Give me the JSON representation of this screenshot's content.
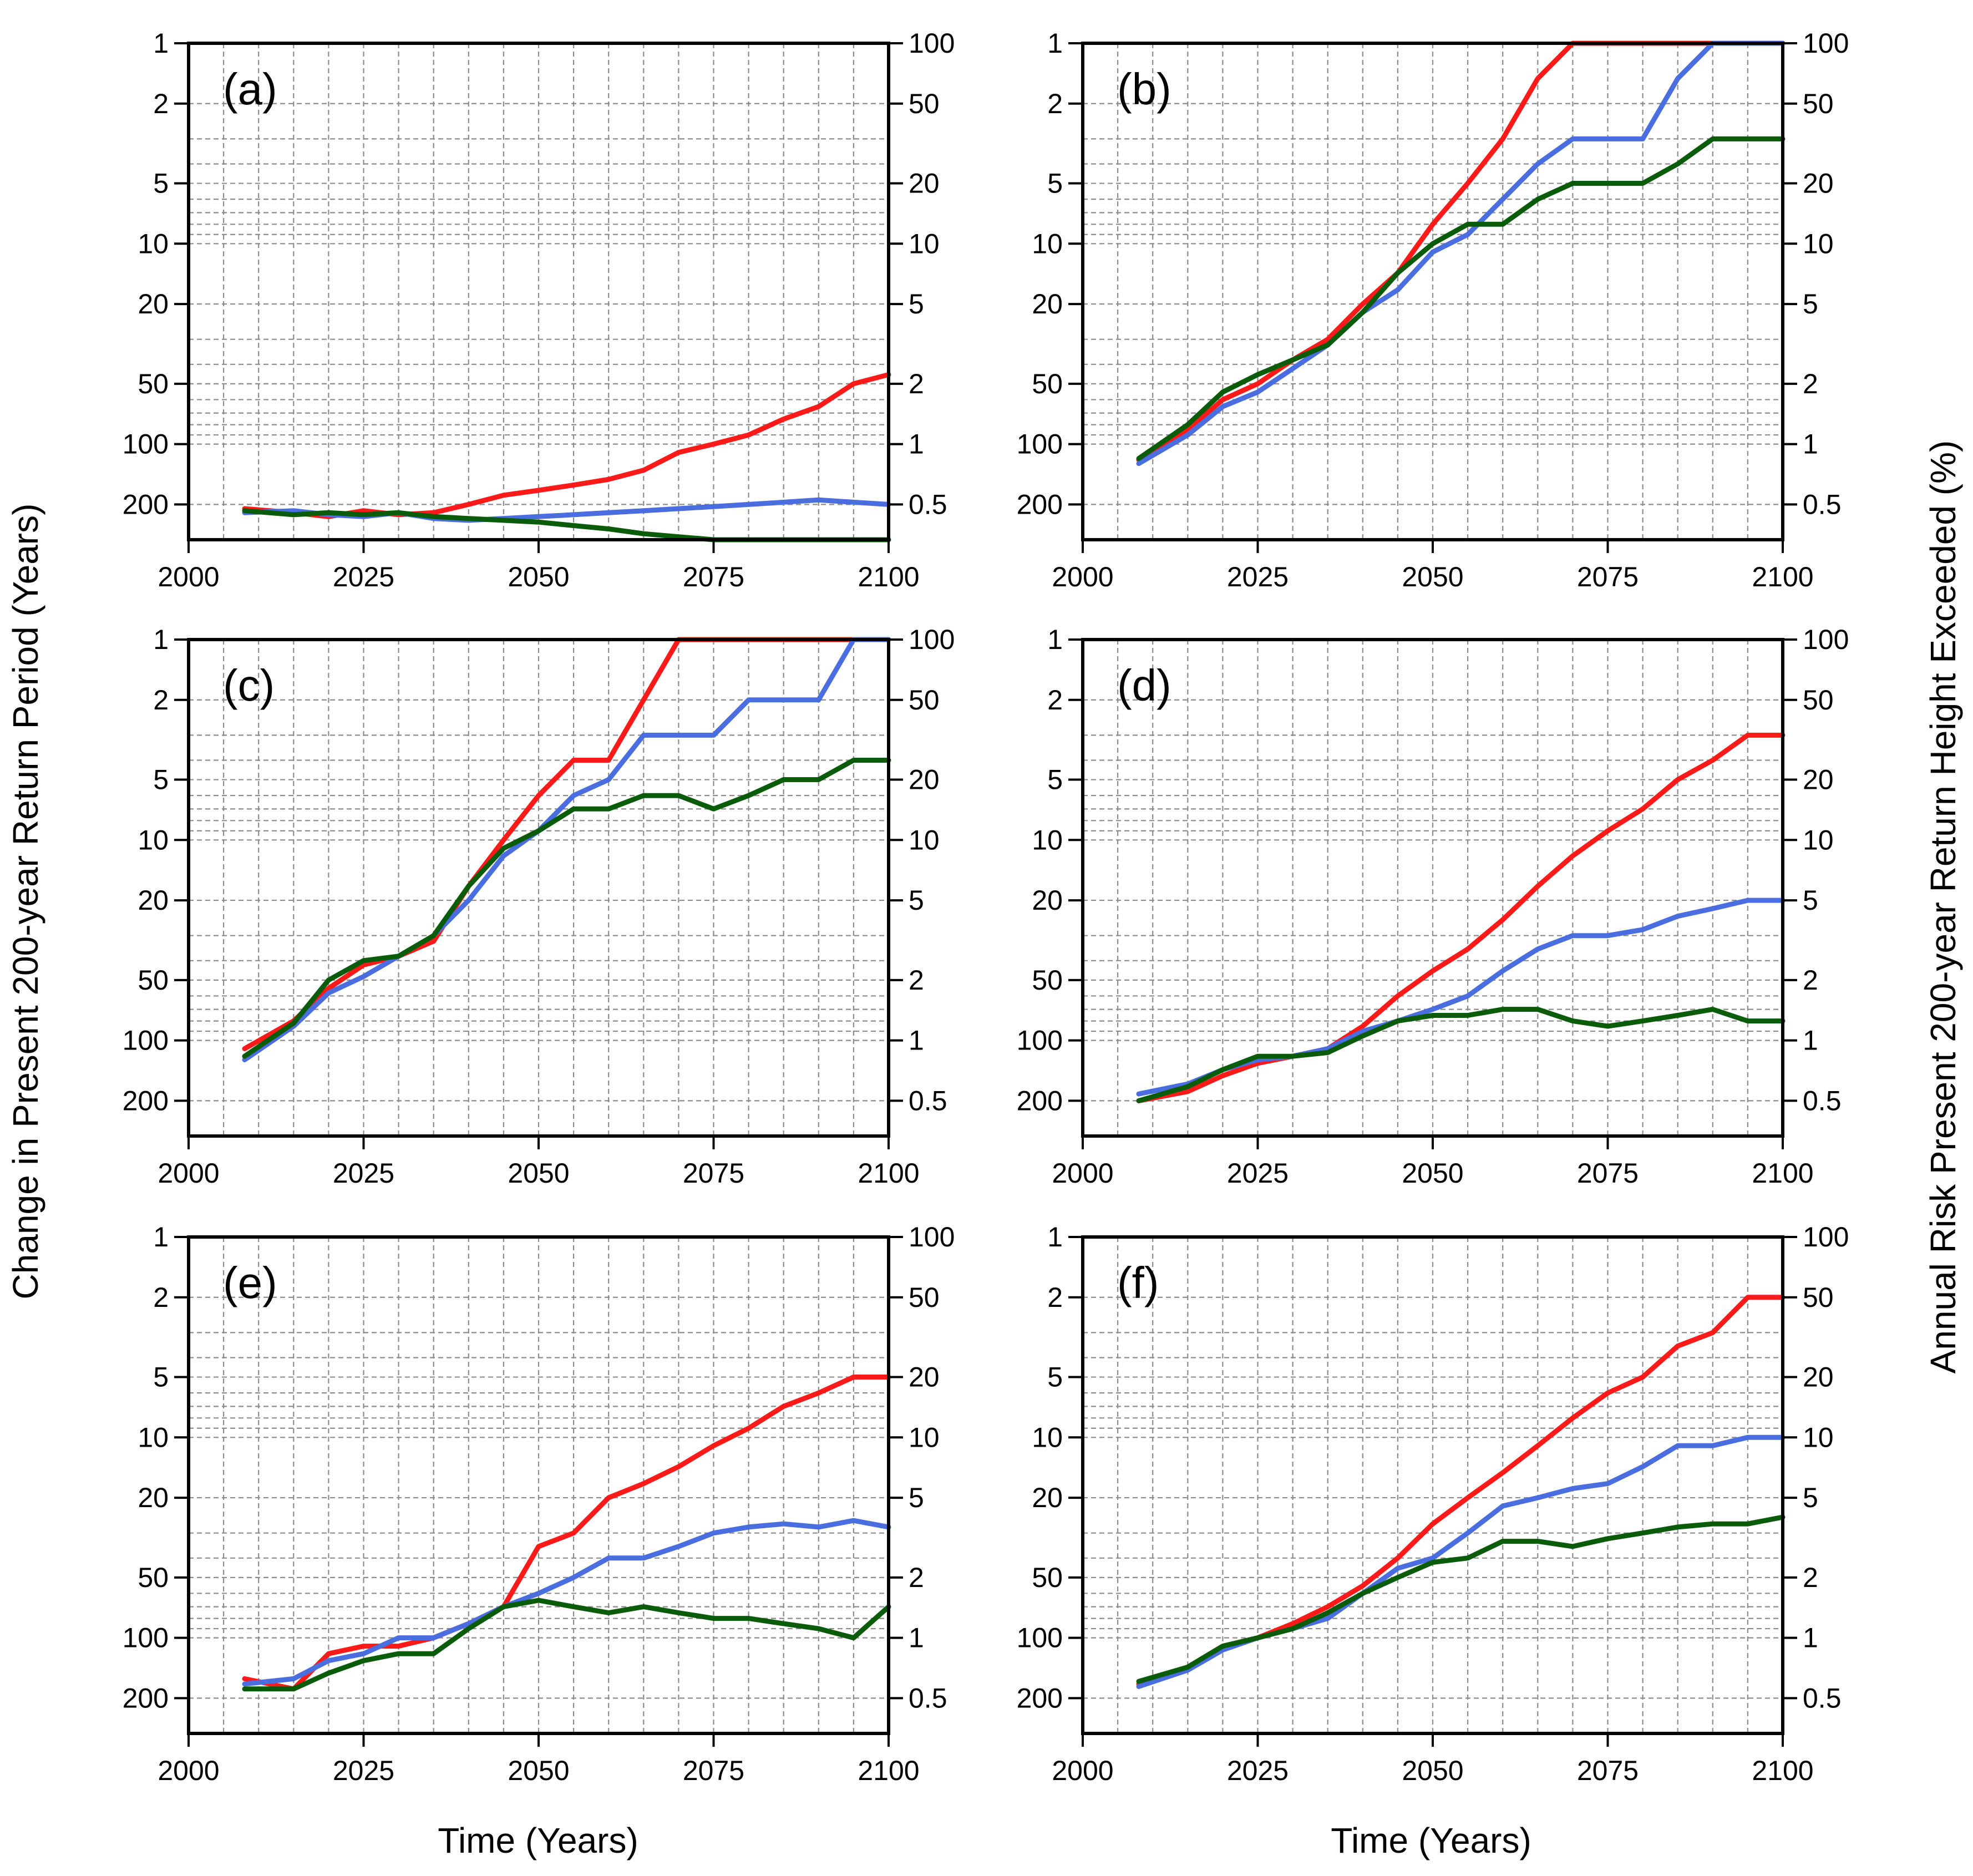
{
  "figure": {
    "ylabel_left": "Change in Present 200-year Return Period (Years)",
    "ylabel_right": "Annual Risk Present 200-year Return Height Exceeded (%)",
    "xlabel": "Time (Years)"
  },
  "colors": {
    "red": "#ff1a1a",
    "blue": "#4a6ee0",
    "green": "#0a5c0a"
  },
  "chart_data": [
    {
      "type": "line",
      "panel_label": "(a)",
      "x_ticks": [
        "2000",
        "2025",
        "2050",
        "2075",
        "2100"
      ],
      "y_left_ticks": [
        "1",
        "2",
        "5",
        "10",
        "20",
        "50",
        "100",
        "200"
      ],
      "y_right_ticks": [
        "100",
        "50",
        "20",
        "10",
        "5",
        "2",
        "1",
        "0.5"
      ],
      "x": [
        2008,
        2015,
        2020,
        2025,
        2030,
        2035,
        2040,
        2045,
        2050,
        2055,
        2060,
        2065,
        2070,
        2075,
        2080,
        2085,
        2090,
        2095,
        2100
      ],
      "series": [
        {
          "name": "red",
          "color": "#ff1a1a",
          "values": [
            210,
            220,
            230,
            215,
            225,
            220,
            200,
            180,
            170,
            160,
            150,
            135,
            110,
            100,
            90,
            75,
            65,
            50,
            45
          ]
        },
        {
          "name": "blue",
          "color": "#4a6ee0",
          "values": [
            220,
            215,
            225,
            230,
            220,
            235,
            240,
            235,
            230,
            225,
            220,
            215,
            210,
            205,
            200,
            195,
            190,
            195,
            200
          ]
        },
        {
          "name": "green",
          "color": "#0a5c0a",
          "values": [
            215,
            225,
            220,
            225,
            220,
            230,
            235,
            240,
            245,
            255,
            265,
            280,
            290,
            300,
            300,
            300,
            300,
            300,
            300
          ]
        }
      ]
    },
    {
      "type": "line",
      "panel_label": "(b)",
      "x_ticks": [
        "2000",
        "2025",
        "2050",
        "2075",
        "2100"
      ],
      "y_left_ticks": [
        "1",
        "2",
        "5",
        "10",
        "20",
        "50",
        "100",
        "200"
      ],
      "y_right_ticks": [
        "100",
        "50",
        "20",
        "10",
        "5",
        "2",
        "1",
        "0.5"
      ],
      "x": [
        2008,
        2015,
        2020,
        2025,
        2030,
        2035,
        2040,
        2045,
        2050,
        2055,
        2060,
        2065,
        2070,
        2075,
        2080,
        2085,
        2090,
        2095,
        2100
      ],
      "series": [
        {
          "name": "red",
          "color": "#ff1a1a",
          "values": [
            120,
            85,
            60,
            50,
            38,
            30,
            20,
            14,
            8,
            5,
            3,
            1.5,
            1,
            1,
            1,
            1,
            1,
            1,
            1
          ]
        },
        {
          "name": "blue",
          "color": "#4a6ee0",
          "values": [
            125,
            90,
            65,
            55,
            42,
            32,
            22,
            17,
            11,
            9,
            6,
            4,
            3,
            3,
            3,
            1.5,
            1,
            1,
            1
          ]
        },
        {
          "name": "green",
          "color": "#0a5c0a",
          "values": [
            118,
            80,
            55,
            45,
            38,
            32,
            22,
            14,
            10,
            8,
            8,
            6,
            5,
            5,
            5,
            4,
            3,
            3,
            3
          ]
        }
      ]
    },
    {
      "type": "line",
      "panel_label": "(c)",
      "x_ticks": [
        "2000",
        "2025",
        "2050",
        "2075",
        "2100"
      ],
      "y_left_ticks": [
        "1",
        "2",
        "5",
        "10",
        "20",
        "50",
        "100",
        "200"
      ],
      "y_right_ticks": [
        "100",
        "50",
        "20",
        "10",
        "5",
        "2",
        "1",
        "0.5"
      ],
      "x": [
        2008,
        2015,
        2020,
        2025,
        2030,
        2035,
        2040,
        2045,
        2050,
        2055,
        2060,
        2065,
        2070,
        2075,
        2080,
        2085,
        2090,
        2095,
        2100
      ],
      "series": [
        {
          "name": "red",
          "color": "#ff1a1a",
          "values": [
            110,
            80,
            55,
            42,
            38,
            32,
            17,
            10,
            6,
            4,
            4,
            2,
            1,
            1,
            1,
            1,
            1,
            1,
            1
          ]
        },
        {
          "name": "blue",
          "color": "#4a6ee0",
          "values": [
            125,
            85,
            58,
            48,
            38,
            30,
            20,
            12,
            9,
            6,
            5,
            3,
            3,
            3,
            2,
            2,
            2,
            1,
            1
          ]
        },
        {
          "name": "green",
          "color": "#0a5c0a",
          "values": [
            120,
            82,
            50,
            40,
            38,
            30,
            17,
            11,
            9,
            7,
            7,
            6,
            6,
            7,
            6,
            5,
            5,
            4,
            4
          ]
        }
      ]
    },
    {
      "type": "line",
      "panel_label": "(d)",
      "x_ticks": [
        "2000",
        "2025",
        "2050",
        "2075",
        "2100"
      ],
      "y_left_ticks": [
        "1",
        "2",
        "5",
        "10",
        "20",
        "50",
        "100",
        "200"
      ],
      "y_right_ticks": [
        "100",
        "50",
        "20",
        "10",
        "5",
        "2",
        "1",
        "0.5"
      ],
      "x": [
        2008,
        2015,
        2020,
        2025,
        2030,
        2035,
        2040,
        2045,
        2050,
        2055,
        2060,
        2065,
        2070,
        2075,
        2080,
        2085,
        2090,
        2095,
        2100
      ],
      "series": [
        {
          "name": "red",
          "color": "#ff1a1a",
          "values": [
            200,
            180,
            150,
            130,
            120,
            110,
            85,
            60,
            45,
            35,
            25,
            17,
            12,
            9,
            7,
            5,
            4,
            3,
            3
          ]
        },
        {
          "name": "blue",
          "color": "#4a6ee0",
          "values": [
            185,
            165,
            140,
            125,
            120,
            110,
            90,
            80,
            70,
            60,
            45,
            35,
            30,
            30,
            28,
            24,
            22,
            20,
            20
          ]
        },
        {
          "name": "green",
          "color": "#0a5c0a",
          "values": [
            200,
            170,
            140,
            120,
            120,
            115,
            95,
            80,
            75,
            75,
            70,
            70,
            80,
            85,
            80,
            75,
            70,
            80,
            80
          ]
        }
      ]
    },
    {
      "type": "line",
      "panel_label": "(e)",
      "x_ticks": [
        "2000",
        "2025",
        "2050",
        "2075",
        "2100"
      ],
      "y_left_ticks": [
        "1",
        "2",
        "5",
        "10",
        "20",
        "50",
        "100",
        "200"
      ],
      "y_right_ticks": [
        "100",
        "50",
        "20",
        "10",
        "5",
        "2",
        "1",
        "0.5"
      ],
      "x": [
        2008,
        2015,
        2020,
        2025,
        2030,
        2035,
        2040,
        2045,
        2050,
        2055,
        2060,
        2065,
        2070,
        2075,
        2080,
        2085,
        2090,
        2095,
        2100
      ],
      "series": [
        {
          "name": "red",
          "color": "#ff1a1a",
          "values": [
            160,
            180,
            120,
            110,
            110,
            100,
            85,
            70,
            35,
            30,
            20,
            17,
            14,
            11,
            9,
            7,
            6,
            5,
            5
          ]
        },
        {
          "name": "blue",
          "color": "#4a6ee0",
          "values": [
            170,
            160,
            130,
            120,
            100,
            100,
            85,
            70,
            60,
            50,
            40,
            40,
            35,
            30,
            28,
            27,
            28,
            26,
            28
          ]
        },
        {
          "name": "green",
          "color": "#0a5c0a",
          "values": [
            180,
            180,
            150,
            130,
            120,
            120,
            90,
            70,
            65,
            70,
            75,
            70,
            75,
            80,
            80,
            85,
            90,
            100,
            70
          ]
        }
      ]
    },
    {
      "type": "line",
      "panel_label": "(f)",
      "x_ticks": [
        "2000",
        "2025",
        "2050",
        "2075",
        "2100"
      ],
      "y_left_ticks": [
        "1",
        "2",
        "5",
        "10",
        "20",
        "50",
        "100",
        "200"
      ],
      "y_right_ticks": [
        "100",
        "50",
        "20",
        "10",
        "5",
        "2",
        "1",
        "0.5"
      ],
      "x": [
        2008,
        2015,
        2020,
        2025,
        2030,
        2035,
        2040,
        2045,
        2050,
        2055,
        2060,
        2065,
        2070,
        2075,
        2080,
        2085,
        2090,
        2095,
        2100
      ],
      "series": [
        {
          "name": "red",
          "color": "#ff1a1a",
          "values": [
            170,
            140,
            110,
            100,
            85,
            70,
            55,
            40,
            27,
            20,
            15,
            11,
            8,
            6,
            5,
            3.5,
            3,
            2,
            2
          ]
        },
        {
          "name": "blue",
          "color": "#4a6ee0",
          "values": [
            175,
            145,
            115,
            100,
            90,
            80,
            60,
            45,
            40,
            30,
            22,
            20,
            18,
            17,
            14,
            11,
            11,
            10,
            10
          ]
        },
        {
          "name": "green",
          "color": "#0a5c0a",
          "values": [
            165,
            140,
            110,
            100,
            90,
            75,
            60,
            50,
            42,
            40,
            33,
            33,
            35,
            32,
            30,
            28,
            27,
            27,
            25
          ]
        }
      ]
    }
  ]
}
